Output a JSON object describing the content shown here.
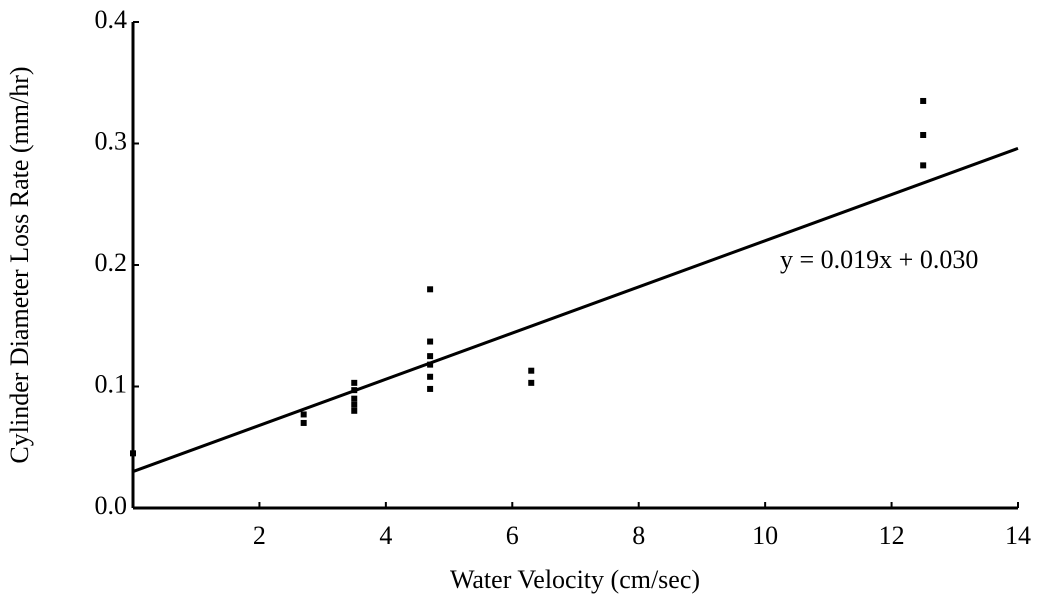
{
  "chart_data": {
    "type": "scatter",
    "x_label": "Water Velocity (cm/sec)",
    "y_label": "Cylinder Diameter Loss Rate (mm/hr)",
    "annotation": "y = 0.019x + 0.030",
    "x": [
      0,
      2.7,
      2.7,
      3.5,
      3.5,
      3.5,
      3.5,
      3.5,
      4.7,
      4.7,
      4.7,
      4.7,
      4.7,
      4.7,
      6.3,
      6.3,
      12.5,
      12.5,
      12.5
    ],
    "values": [
      0.045,
      0.077,
      0.07,
      0.103,
      0.097,
      0.09,
      0.085,
      0.08,
      0.18,
      0.137,
      0.125,
      0.118,
      0.108,
      0.098,
      0.113,
      0.103,
      0.335,
      0.307,
      0.282
    ],
    "color": "#000000",
    "fit_line": {
      "x": [
        0,
        14
      ],
      "values": [
        0.03,
        0.296
      ]
    },
    "xlim": [
      0,
      14
    ],
    "xticks": [
      2,
      4,
      6,
      8,
      10,
      12,
      14
    ],
    "ylim": [
      0,
      0.4
    ],
    "yticks": [
      {
        "value": 0,
        "label": "0.0"
      },
      0.1,
      0.2,
      0.3,
      0.4
    ]
  }
}
